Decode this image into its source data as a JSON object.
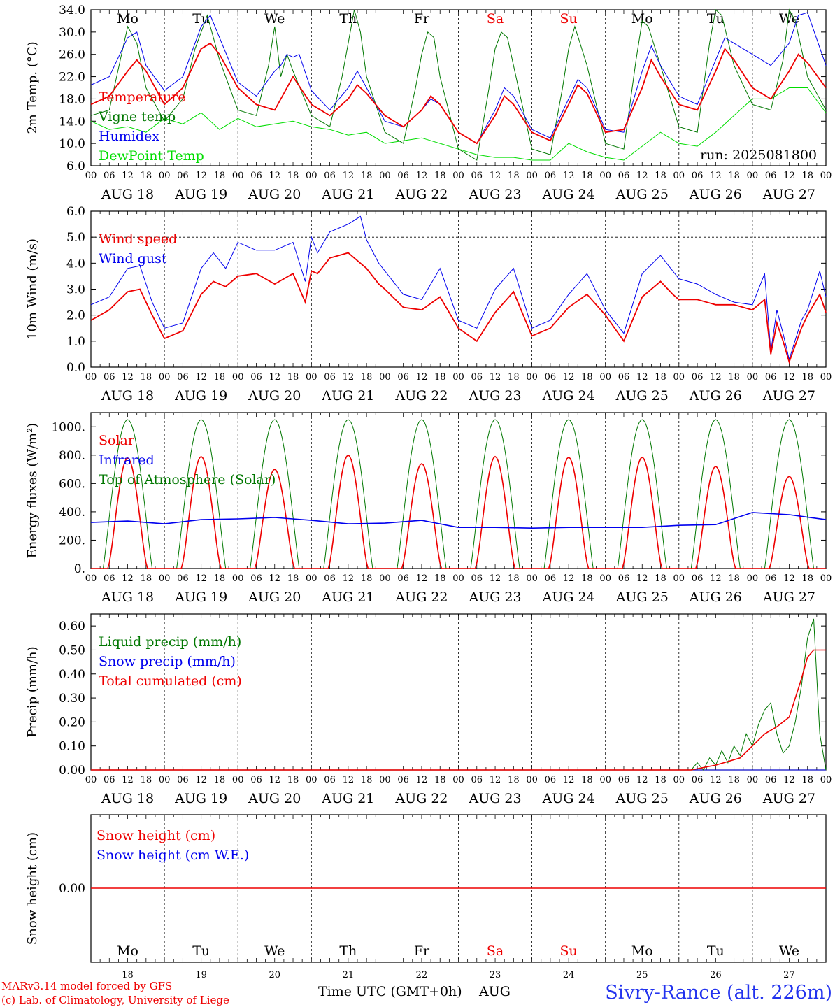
{
  "days": [
    "18",
    "19",
    "20",
    "21",
    "22",
    "23",
    "24",
    "25",
    "26",
    "27"
  ],
  "dates": [
    "AUG 18",
    "AUG 19",
    "AUG 20",
    "AUG 21",
    "AUG 22",
    "AUG 23",
    "AUG 24",
    "AUG 25",
    "AUG 26",
    "AUG 27"
  ],
  "weekdays": [
    "Mo",
    "Tu",
    "We",
    "Th",
    "Fr",
    "Sa",
    "Su",
    "Mo",
    "Tu",
    "We"
  ],
  "weekend_indices": [
    5,
    6
  ],
  "hour_ticks": [
    "00",
    "06",
    "12",
    "18"
  ],
  "colors": {
    "red": "#ee0000",
    "green": "#007700",
    "blue": "#0000ee",
    "lightgreen": "#00dd00",
    "weekend": "#ee0000"
  },
  "footer": {
    "model": "MARv3.14 model forced by GFS",
    "lab": "(c) Lab. of Climatology, University of Liege",
    "time_axis": "Time UTC (GMT+0h)",
    "month": "AUG",
    "station": "Sivry-Rance (alt. 226m)"
  },
  "chart_data": [
    {
      "type": "line",
      "ylabel": "2m Temp. (°C)",
      "ylim": [
        6,
        34
      ],
      "yticks": [
        "6.0",
        "10.0",
        "14.0",
        "18.0",
        "22.0",
        "26.0",
        "30.0",
        "34.0"
      ],
      "annotation": "run: 2025081800",
      "series": [
        {
          "name": "Temperature",
          "color": "red",
          "x": [
            0,
            6,
            12,
            15,
            18,
            24,
            30,
            36,
            39,
            42,
            48,
            54,
            60,
            63,
            66,
            72,
            78,
            84,
            87,
            90,
            96,
            102,
            108,
            111,
            114,
            120,
            126,
            132,
            135,
            138,
            144,
            150,
            156,
            159,
            162,
            168,
            174,
            180,
            183,
            186,
            192,
            198,
            204,
            207,
            210,
            216,
            222,
            228,
            231,
            234,
            240
          ],
          "y": [
            17,
            18.5,
            23,
            25,
            23,
            17,
            20,
            27,
            28,
            26,
            20,
            17,
            16,
            19,
            22,
            17,
            15,
            18,
            20.5,
            19,
            15,
            13,
            16,
            18.5,
            17,
            12,
            10,
            15,
            18.5,
            17,
            12,
            10.5,
            17,
            20.5,
            19,
            12,
            12.5,
            20,
            25,
            22,
            17,
            16,
            23,
            27,
            25,
            20,
            18,
            23,
            26,
            24.5,
            20
          ]
        },
        {
          "name": "Vigne temp",
          "color": "green",
          "x": [
            0,
            6,
            10,
            12,
            15,
            18,
            24,
            30,
            34,
            38,
            42,
            48,
            54,
            58,
            60,
            62,
            64,
            66,
            72,
            78,
            82,
            84,
            86,
            88,
            90,
            96,
            102,
            106,
            108,
            110,
            112,
            114,
            120,
            126,
            130,
            132,
            134,
            136,
            138,
            144,
            150,
            154,
            156,
            158,
            162,
            168,
            174,
            178,
            180,
            182,
            186,
            192,
            198,
            202,
            204,
            206,
            210,
            216,
            222,
            226,
            228,
            230,
            234,
            240
          ],
          "y": [
            15,
            16,
            26,
            31,
            28,
            20,
            14,
            18,
            27,
            33,
            25,
            16,
            15,
            24,
            31,
            22,
            26,
            23,
            15,
            13,
            22,
            28,
            34,
            30,
            22,
            12,
            10,
            20,
            26,
            30,
            29,
            22,
            9,
            7,
            20,
            27,
            30,
            29,
            24,
            9,
            8,
            20,
            27,
            31,
            24,
            10,
            9,
            25,
            32,
            31,
            24,
            13,
            12,
            28,
            34,
            33,
            24,
            17,
            16,
            25,
            34,
            32,
            22,
            16
          ]
        },
        {
          "name": "Humidex",
          "color": "blue",
          "x": [
            0,
            6,
            12,
            15,
            18,
            24,
            30,
            36,
            39,
            42,
            48,
            54,
            60,
            62,
            64,
            66,
            68,
            72,
            78,
            84,
            87,
            90,
            96,
            102,
            108,
            111,
            114,
            120,
            126,
            132,
            135,
            138,
            144,
            150,
            156,
            159,
            162,
            168,
            174,
            180,
            183,
            186,
            192,
            198,
            204,
            207,
            210,
            216,
            222,
            228,
            231,
            234,
            240
          ],
          "y": [
            20.5,
            22,
            29,
            30,
            24,
            19.5,
            22,
            31,
            33,
            29,
            21,
            18.5,
            23,
            24,
            26,
            25.5,
            26,
            19.5,
            16,
            20,
            23,
            20,
            14,
            13,
            16,
            18,
            17,
            12,
            10,
            16,
            20,
            18.5,
            12.5,
            11,
            18,
            21.5,
            20,
            12.5,
            12,
            23,
            27.5,
            24,
            18.5,
            17,
            25,
            29,
            28,
            26,
            24,
            28,
            33,
            33.5,
            24
          ]
        },
        {
          "name": "DewPoint Temp",
          "color": "lightgreen",
          "x": [
            0,
            6,
            12,
            18,
            24,
            30,
            36,
            42,
            48,
            54,
            60,
            66,
            72,
            78,
            84,
            90,
            96,
            102,
            108,
            114,
            120,
            126,
            132,
            138,
            144,
            150,
            156,
            162,
            168,
            174,
            180,
            186,
            192,
            198,
            204,
            210,
            216,
            222,
            228,
            234,
            240
          ],
          "y": [
            14,
            12.5,
            13,
            12,
            14.5,
            13.5,
            15.5,
            12.5,
            14.5,
            13,
            13.5,
            14,
            13,
            12.5,
            11.5,
            12,
            10,
            10.5,
            11,
            10,
            9,
            8,
            7.5,
            7.5,
            7,
            7,
            10,
            8.5,
            7.5,
            7,
            9.5,
            12,
            10,
            9.5,
            12,
            15,
            18,
            18,
            20,
            20,
            15.5
          ]
        }
      ]
    },
    {
      "type": "line",
      "ylabel": "10m Wind (m/s)",
      "ylim": [
        0,
        6
      ],
      "yticks": [
        "0.0",
        "1.0",
        "2.0",
        "3.0",
        "4.0",
        "5.0",
        "6.0"
      ],
      "reference_line": 5.0,
      "series": [
        {
          "name": "Wind speed",
          "color": "red",
          "x": [
            0,
            6,
            12,
            16,
            20,
            24,
            30,
            36,
            40,
            44,
            48,
            54,
            60,
            66,
            70,
            72,
            74,
            78,
            84,
            90,
            94,
            96,
            102,
            108,
            114,
            120,
            126,
            132,
            138,
            144,
            150,
            156,
            162,
            168,
            174,
            180,
            186,
            190,
            192,
            198,
            204,
            210,
            216,
            220,
            222,
            224,
            226,
            228,
            232,
            234,
            238,
            240
          ],
          "y": [
            1.8,
            2.2,
            2.9,
            3.0,
            2.0,
            1.1,
            1.4,
            2.8,
            3.3,
            3.1,
            3.5,
            3.6,
            3.2,
            3.6,
            2.5,
            3.7,
            3.6,
            4.2,
            4.4,
            3.8,
            3.2,
            3.0,
            2.3,
            2.2,
            2.7,
            1.5,
            1.0,
            2.1,
            2.9,
            1.2,
            1.5,
            2.3,
            2.8,
            2.0,
            1.0,
            2.7,
            3.3,
            2.8,
            2.6,
            2.6,
            2.4,
            2.4,
            2.2,
            2.6,
            0.5,
            1.7,
            1.0,
            0.2,
            1.5,
            2.0,
            2.8,
            2.1
          ]
        },
        {
          "name": "Wind gust",
          "color": "blue",
          "x": [
            0,
            6,
            12,
            16,
            20,
            24,
            30,
            36,
            40,
            44,
            48,
            54,
            60,
            66,
            70,
            72,
            74,
            78,
            84,
            88,
            90,
            94,
            96,
            102,
            108,
            114,
            120,
            126,
            132,
            138,
            144,
            150,
            156,
            162,
            168,
            174,
            180,
            186,
            190,
            192,
            198,
            204,
            210,
            216,
            220,
            222,
            224,
            226,
            228,
            232,
            234,
            238,
            240
          ],
          "y": [
            2.4,
            2.7,
            3.8,
            3.9,
            2.5,
            1.5,
            1.7,
            3.8,
            4.4,
            3.8,
            4.8,
            4.5,
            4.5,
            4.8,
            3.3,
            5.0,
            4.4,
            5.2,
            5.5,
            5.8,
            4.9,
            4.0,
            3.7,
            2.8,
            2.6,
            3.8,
            1.8,
            1.5,
            3.0,
            3.8,
            1.5,
            1.8,
            2.8,
            3.6,
            2.2,
            1.3,
            3.6,
            4.3,
            3.7,
            3.4,
            3.2,
            2.8,
            2.5,
            2.4,
            3.6,
            0.6,
            2.2,
            1.3,
            0.3,
            1.8,
            2.2,
            3.7,
            2.7
          ]
        }
      ]
    },
    {
      "type": "line",
      "ylabel": "Energy fluxes (W/m²)",
      "ylim": [
        0,
        1100
      ],
      "yticks": [
        "0.",
        "200.",
        "400.",
        "600.",
        "800.",
        "1000."
      ],
      "series": [
        {
          "name": "Solar",
          "color": "red",
          "peaks": [
            780,
            790,
            700,
            800,
            740,
            790,
            785,
            785,
            720,
            650
          ]
        },
        {
          "name": "Infrared",
          "color": "blue",
          "x": [
            0,
            12,
            24,
            36,
            48,
            60,
            72,
            84,
            96,
            108,
            120,
            132,
            144,
            156,
            168,
            180,
            192,
            204,
            216,
            228,
            240
          ],
          "y": [
            325,
            335,
            315,
            345,
            350,
            360,
            340,
            315,
            320,
            340,
            290,
            290,
            285,
            290,
            290,
            290,
            305,
            310,
            395,
            380,
            345
          ]
        },
        {
          "name": "Top of Atmosphere (Solar)",
          "color": "green",
          "peak": 1050
        }
      ]
    },
    {
      "type": "line",
      "ylabel": "Precip (mm/h)",
      "ylim": [
        0,
        0.65
      ],
      "yticks": [
        "0.00",
        "0.10",
        "0.20",
        "0.30",
        "0.40",
        "0.50",
        "0.60"
      ],
      "series": [
        {
          "name": "Liquid precip (mm/h)",
          "color": "green",
          "x": [
            0,
            196,
            198,
            200,
            202,
            204,
            206,
            208,
            210,
            212,
            214,
            216,
            218,
            220,
            222,
            224,
            226,
            228,
            230,
            232,
            234,
            236,
            238,
            240
          ],
          "y": [
            0,
            0,
            0.03,
            0,
            0.05,
            0.02,
            0.08,
            0.03,
            0.1,
            0.06,
            0.15,
            0.1,
            0.19,
            0.25,
            0.28,
            0.15,
            0.07,
            0.1,
            0.2,
            0.35,
            0.55,
            0.63,
            0.15,
            0
          ]
        },
        {
          "name": "Snow precip (mm/h)",
          "color": "blue",
          "x": [
            0,
            240
          ],
          "y": [
            0,
            0
          ]
        },
        {
          "name": "Total cumulated (cm)",
          "color": "red",
          "x": [
            0,
            196,
            204,
            212,
            216,
            220,
            224,
            228,
            232,
            234,
            236,
            240
          ],
          "y": [
            0,
            0,
            0.02,
            0.05,
            0.1,
            0.15,
            0.18,
            0.22,
            0.38,
            0.47,
            0.5,
            0.5
          ]
        }
      ]
    },
    {
      "type": "line",
      "ylabel": "Snow height (cm)",
      "ytick_label": "0.00",
      "series": [
        {
          "name": "Snow height (cm)",
          "color": "red",
          "value": 0
        },
        {
          "name": "Snow height (cm W.E.)",
          "color": "blue",
          "value": 0
        }
      ]
    }
  ]
}
